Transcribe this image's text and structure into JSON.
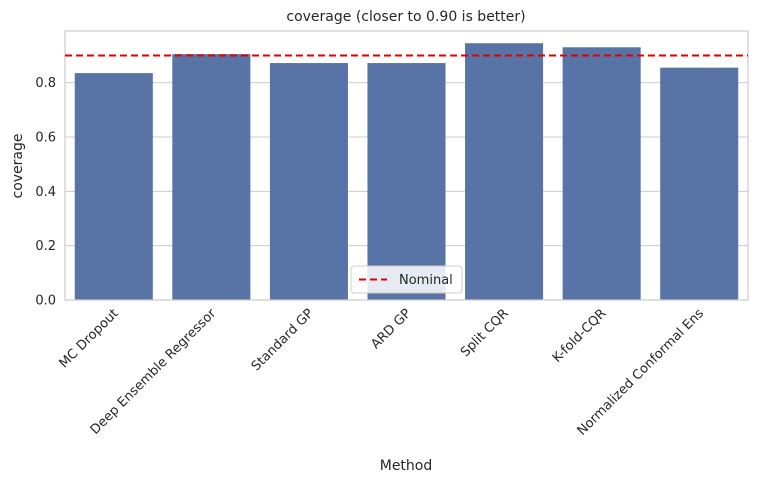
{
  "chart_data": {
    "type": "bar",
    "title": "coverage (closer to 0.90 is better)",
    "xlabel": "Method",
    "ylabel": "coverage",
    "categories": [
      "MC Dropout",
      "Deep Ensemble Regressor",
      "Standard GP",
      "ARD GP",
      "Split CQR",
      "K-fold-CQR",
      "Normalized Conformal Ens"
    ],
    "values": [
      0.835,
      0.905,
      0.872,
      0.872,
      0.945,
      0.93,
      0.855
    ],
    "ylim": [
      0,
      0.99
    ],
    "yticks": [
      0.0,
      0.2,
      0.4,
      0.6,
      0.8
    ],
    "ytick_labels": [
      "0.0",
      "0.2",
      "0.4",
      "0.6",
      "0.8"
    ],
    "reference_line": {
      "value": 0.9,
      "label": "Nominal",
      "color": "#e00000",
      "style": "dashed"
    },
    "legend": {
      "entries": [
        "Nominal"
      ],
      "placement": "lower-center"
    },
    "grid": {
      "y": true,
      "x": false
    },
    "colors": {
      "bar": "#5873a5",
      "grid": "#cccccc",
      "frame": "#cccccc"
    }
  }
}
